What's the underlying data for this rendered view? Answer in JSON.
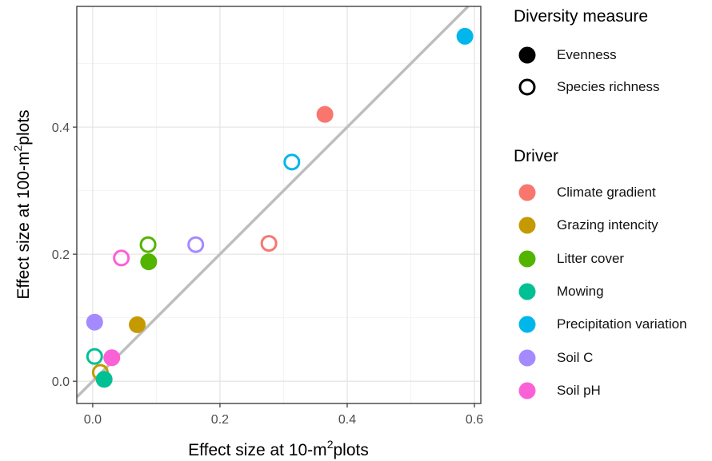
{
  "chart_data": {
    "type": "scatter",
    "title": "",
    "xlabel": {
      "main": "Effect size at 10-m",
      "sup": "2",
      "tail": "plots"
    },
    "ylabel": {
      "main": "Effect size at 100-m",
      "sup": "2",
      "tail": "plots"
    },
    "xlim": [
      -0.025,
      0.61
    ],
    "ylim": [
      -0.035,
      0.59
    ],
    "x_ticks": [
      "0.0",
      "0.2",
      "0.4",
      "0.6"
    ],
    "x_tick_values": [
      0.0,
      0.2,
      0.4,
      0.6
    ],
    "y_ticks": [
      "0.0",
      "0.2",
      "0.4"
    ],
    "y_tick_values": [
      0.0,
      0.2,
      0.4
    ],
    "grid": true,
    "reference_line": {
      "label": "",
      "slope": 1,
      "intercept": 0,
      "color": "#bebebe"
    },
    "legend_position": "right",
    "shape_legend": {
      "title": "Diversity measure",
      "entries": [
        {
          "name": "Evenness",
          "filled": true
        },
        {
          "name": "Species richness",
          "filled": false
        }
      ]
    },
    "color_legend": {
      "title": "Driver",
      "entries": [
        {
          "name": "Climate gradient",
          "color": "#F8766D"
        },
        {
          "name": "Grazing intencity",
          "color": "#C49A00"
        },
        {
          "name": "Litter cover",
          "color": "#53B400"
        },
        {
          "name": "Mowing",
          "color": "#00C094"
        },
        {
          "name": "Precipitation variation",
          "color": "#00B6EB"
        },
        {
          "name": "Soil C",
          "color": "#A58AFF"
        },
        {
          "name": "Soil pH",
          "color": "#FB61D7"
        }
      ]
    },
    "points": [
      {
        "driver": "Climate gradient",
        "measure": "Evenness",
        "x": 0.365,
        "y": 0.42
      },
      {
        "driver": "Climate gradient",
        "measure": "Species richness",
        "x": 0.277,
        "y": 0.217
      },
      {
        "driver": "Grazing intencity",
        "measure": "Evenness",
        "x": 0.07,
        "y": 0.089
      },
      {
        "driver": "Grazing intencity",
        "measure": "Species richness",
        "x": 0.012,
        "y": 0.014
      },
      {
        "driver": "Litter cover",
        "measure": "Evenness",
        "x": 0.088,
        "y": 0.188
      },
      {
        "driver": "Litter cover",
        "measure": "Species richness",
        "x": 0.087,
        "y": 0.215
      },
      {
        "driver": "Mowing",
        "measure": "Evenness",
        "x": 0.018,
        "y": 0.003
      },
      {
        "driver": "Mowing",
        "measure": "Species richness",
        "x": 0.003,
        "y": 0.039
      },
      {
        "driver": "Precipitation variation",
        "measure": "Evenness",
        "x": 0.585,
        "y": 0.543
      },
      {
        "driver": "Precipitation variation",
        "measure": "Species richness",
        "x": 0.313,
        "y": 0.345
      },
      {
        "driver": "Soil C",
        "measure": "Evenness",
        "x": 0.003,
        "y": 0.093
      },
      {
        "driver": "Soil C",
        "measure": "Species richness",
        "x": 0.162,
        "y": 0.215
      },
      {
        "driver": "Soil pH",
        "measure": "Evenness",
        "x": 0.03,
        "y": 0.037
      },
      {
        "driver": "Soil pH",
        "measure": "Species richness",
        "x": 0.045,
        "y": 0.194
      }
    ]
  }
}
